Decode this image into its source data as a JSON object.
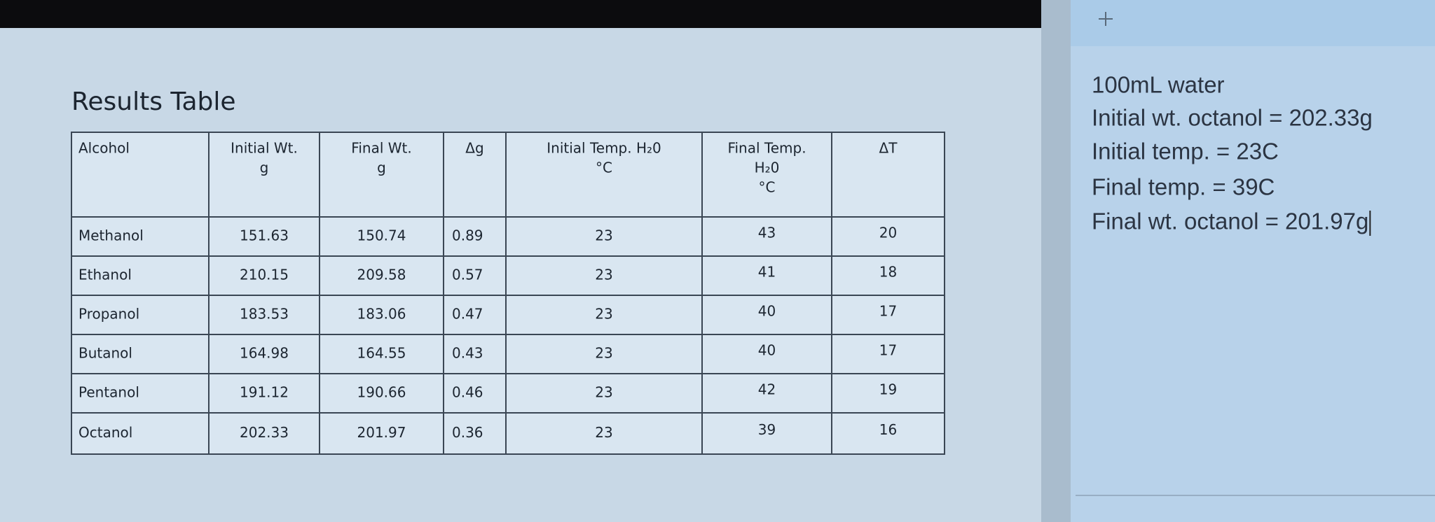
{
  "document": {
    "title": "Results Table",
    "table": {
      "headers": [
        [
          "Alcohol"
        ],
        [
          "Initial Wt.",
          "g"
        ],
        [
          "Final Wt.",
          "g"
        ],
        [
          "Δg"
        ],
        [
          "Initial Temp. H₂0",
          "°C"
        ],
        [
          "Final Temp.",
          "H₂0",
          "°C"
        ],
        [
          "ΔT"
        ]
      ],
      "rows": [
        [
          "Methanol",
          "151.63",
          "150.74",
          "0.89",
          "23",
          "43",
          "20"
        ],
        [
          "Ethanol",
          "210.15",
          "209.58",
          "0.57",
          "23",
          "41",
          "18"
        ],
        [
          "Propanol",
          "183.53",
          "183.06",
          "0.47",
          "23",
          "40",
          "17"
        ],
        [
          "Butanol",
          "164.98",
          "164.55",
          "0.43",
          "23",
          "40",
          "17"
        ],
        [
          "Pentanol",
          "191.12",
          "190.66",
          "0.46",
          "23",
          "42",
          "19"
        ],
        [
          "Octanol",
          "202.33",
          "201.97",
          "0.36",
          "23",
          "39",
          "16"
        ]
      ]
    }
  },
  "notes": {
    "lines": [
      "100mL water",
      "Initial wt. octanol = 202.33g",
      "Initial temp. = 23C",
      "Final temp. = 39C",
      "Final wt. octanol = 201.97g"
    ]
  }
}
